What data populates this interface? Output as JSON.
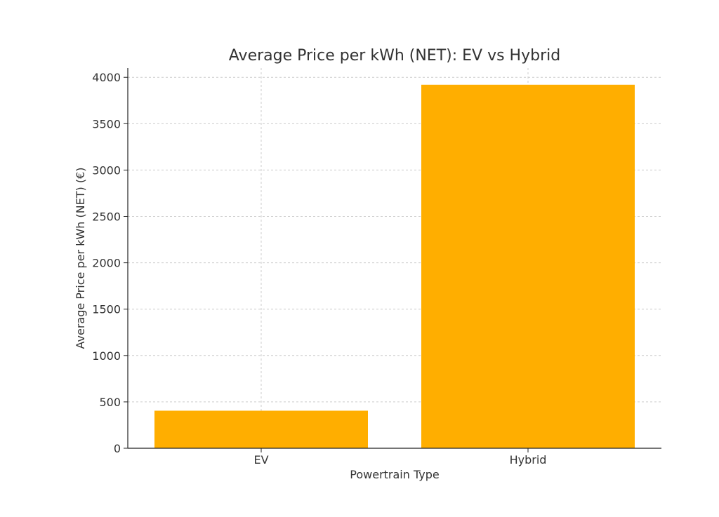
{
  "chart_data": {
    "type": "bar",
    "title": "Average Price per kWh (NET): EV vs Hybrid",
    "xlabel": "Powertrain Type",
    "ylabel": "Average Price per kWh (NET) (€)",
    "categories": [
      "EV",
      "Hybrid"
    ],
    "values": [
      405,
      3920
    ],
    "ylim": [
      0,
      4100
    ],
    "yticks": [
      0,
      500,
      1000,
      1500,
      2000,
      2500,
      3000,
      3500,
      4000
    ],
    "grid": true,
    "legend": "none",
    "bar_color": "#FFAE00",
    "grid_color": "#cccccc",
    "axis_color": "#222222"
  }
}
